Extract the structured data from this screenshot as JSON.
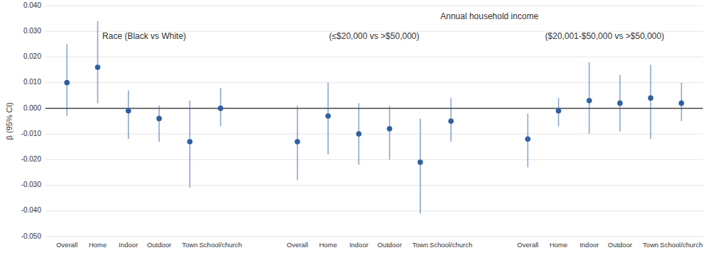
{
  "chart_data": {
    "type": "errorbar",
    "ylabel": "β (95% CI)",
    "color": "#2e5fa3",
    "grid": true,
    "ylim": [
      -0.05,
      0.04
    ],
    "yticks": [
      {
        "value": -0.05,
        "label": "-0.050"
      },
      {
        "value": -0.04,
        "label": "-0.040"
      },
      {
        "value": -0.03,
        "label": "-0.030"
      },
      {
        "value": -0.02,
        "label": "-0.020"
      },
      {
        "value": -0.01,
        "label": "-0.010"
      },
      {
        "value": 0.0,
        "label": "0.000"
      },
      {
        "value": 0.01,
        "label": "0.010"
      },
      {
        "value": 0.02,
        "label": "0.020"
      },
      {
        "value": 0.03,
        "label": "0.030"
      },
      {
        "value": 0.04,
        "label": "0.040"
      }
    ],
    "annotations": [
      "Annual household income"
    ],
    "groups": [
      {
        "label": "Race (Black vs White)",
        "categories": [
          "Overall",
          "Home",
          "Indoor",
          "Outdoor",
          "Town",
          "School/church"
        ],
        "values": [
          0.01,
          0.016,
          -0.001,
          -0.004,
          -0.013,
          0.0
        ],
        "ci_lower": [
          -0.003,
          0.002,
          -0.012,
          -0.013,
          -0.031,
          -0.007
        ],
        "ci_upper": [
          0.025,
          0.034,
          0.007,
          0.001,
          0.003,
          0.008
        ]
      },
      {
        "label": "(≤$20,000 vs >$50,000)",
        "categories": [
          "Overall",
          "Home",
          "Indoor",
          "Outdoor",
          "Town",
          "School/church"
        ],
        "values": [
          -0.013,
          -0.003,
          -0.01,
          -0.008,
          -0.021,
          -0.005
        ],
        "ci_lower": [
          -0.028,
          -0.018,
          -0.022,
          -0.02,
          -0.041,
          -0.013
        ],
        "ci_upper": [
          0.001,
          0.01,
          0.002,
          0.001,
          -0.004,
          0.004
        ]
      },
      {
        "label": "($20,001-$50,000 vs >$50,000)",
        "categories": [
          "Overall",
          "Home",
          "Indoor",
          "Outdoor",
          "Town",
          "School/church"
        ],
        "values": [
          -0.012,
          -0.001,
          0.003,
          0.002,
          0.004,
          0.002
        ],
        "ci_lower": [
          -0.023,
          -0.007,
          -0.01,
          -0.009,
          -0.012,
          -0.005
        ],
        "ci_upper": [
          -0.002,
          0.004,
          0.018,
          0.013,
          0.017,
          0.01
        ]
      }
    ]
  }
}
